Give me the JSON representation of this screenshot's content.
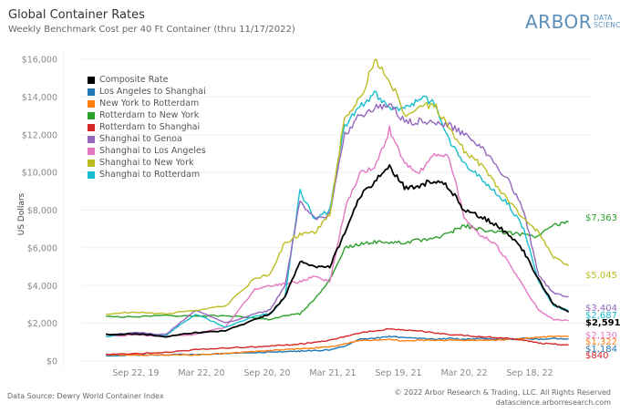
{
  "header": {
    "title": "Global Container Rates",
    "subtitle": "Weekly Benchmark Cost per 40 Ft Container (thru 11/17/2022)",
    "logo_main": "ARBOR",
    "logo_sub_1": "DATA",
    "logo_sub_2": "SCIENCE"
  },
  "footer": {
    "source": "Data Source: Dewry World Container Index",
    "copyright": "© 2022 Arbor Research & Trading, LLC. All Rights Reserved",
    "url": "datascience.arborresearch.com"
  },
  "chart_data": {
    "type": "line",
    "title": "Global Container Rates",
    "subtitle": "Weekly Benchmark Cost per 40 Ft Container (thru 11/17/2022)",
    "xlabel": "",
    "ylabel": "US Dollars",
    "ylim": [
      0,
      16000
    ],
    "yticks": [
      0,
      2000,
      4000,
      6000,
      8000,
      10000,
      12000,
      14000,
      16000
    ],
    "ytick_labels": [
      "$0",
      "$2,000",
      "$4,000",
      "$6,000",
      "$8,000",
      "$10,000",
      "$12,000",
      "$14,000",
      "$16,000"
    ],
    "xtick_labels": [
      "Sep 22, 19",
      "Mar 22, 20",
      "Sep 20, 20",
      "Mar 21, 21",
      "Sep 19, 21",
      "Mar 20, 22",
      "Sep 18, 22"
    ],
    "xtick_positions": [
      0.1,
      0.32,
      0.54,
      0.76,
      0.98,
      1.2,
      1.42
    ],
    "x_range": [
      -0.08,
      1.6
    ],
    "grid": true,
    "legend_position": "top-left",
    "x": [
      0.0,
      0.1,
      0.2,
      0.3,
      0.4,
      0.5,
      0.55,
      0.6,
      0.65,
      0.7,
      0.75,
      0.8,
      0.85,
      0.9,
      0.95,
      1.0,
      1.05,
      1.1,
      1.15,
      1.2,
      1.25,
      1.3,
      1.35,
      1.4,
      1.45,
      1.5,
      1.55
    ],
    "series": [
      {
        "name": "Composite Rate",
        "color": "#000000",
        "end_label": "$2,591",
        "values": [
          1400,
          1450,
          1300,
          1500,
          1600,
          2200,
          2500,
          3400,
          5300,
          5000,
          5000,
          6800,
          8700,
          9500,
          10300,
          9200,
          9300,
          9600,
          9200,
          8000,
          7700,
          7300,
          6700,
          5800,
          4300,
          3000,
          2591
        ]
      },
      {
        "name": "Los Angeles to Shanghai",
        "color": "#1f77b4",
        "end_label": "$1,184",
        "values": [
          300,
          320,
          330,
          350,
          400,
          450,
          480,
          500,
          520,
          550,
          600,
          800,
          1150,
          1200,
          1300,
          1250,
          1200,
          1150,
          1200,
          1150,
          1200,
          1150,
          1150,
          1200,
          1150,
          1200,
          1184
        ]
      },
      {
        "name": "New York to Rotterdam",
        "color": "#ff7f0e",
        "end_label": "$1,322",
        "values": [
          350,
          300,
          330,
          330,
          400,
          500,
          550,
          600,
          650,
          700,
          750,
          900,
          1100,
          1100,
          1150,
          1050,
          1100,
          1100,
          1100,
          1100,
          1100,
          1100,
          1150,
          1200,
          1250,
          1300,
          1322
        ]
      },
      {
        "name": "Rotterdam to New York",
        "color": "#2ca02c",
        "end_label": "$7,363",
        "values": [
          2350,
          2350,
          2400,
          2400,
          2400,
          2300,
          2200,
          2400,
          2500,
          3300,
          4300,
          6000,
          6200,
          6300,
          6300,
          6300,
          6400,
          6500,
          6800,
          7200,
          7000,
          6800,
          6800,
          6700,
          6600,
          7200,
          7363
        ]
      },
      {
        "name": "Rotterdam to Shanghai",
        "color": "#d62728",
        "end_label": "$840",
        "values": [
          350,
          400,
          450,
          600,
          700,
          750,
          800,
          850,
          900,
          1000,
          1100,
          1300,
          1500,
          1600,
          1700,
          1650,
          1600,
          1500,
          1400,
          1350,
          1300,
          1250,
          1200,
          1100,
          950,
          900,
          840
        ]
      },
      {
        "name": "Shanghai to Genoa",
        "color": "#9467bd",
        "end_label": "$3,404",
        "values": [
          1400,
          1500,
          1400,
          2700,
          2000,
          2500,
          2700,
          4000,
          8500,
          7500,
          7800,
          12000,
          13000,
          13400,
          13600,
          12700,
          12700,
          12600,
          12500,
          12000,
          11500,
          10500,
          9500,
          8000,
          4500,
          3600,
          3404
        ]
      },
      {
        "name": "Shanghai to Los Angeles",
        "color": "#e377c2",
        "end_label": "$2,130",
        "values": [
          1300,
          1400,
          1300,
          1400,
          1800,
          3800,
          4000,
          4100,
          4200,
          4500,
          4200,
          8000,
          10000,
          10200,
          12300,
          10500,
          10000,
          11000,
          10800,
          7600,
          6700,
          6300,
          5200,
          3900,
          2700,
          2200,
          2130
        ]
      },
      {
        "name": "Shanghai to New York",
        "color": "#bcbd22",
        "end_label": "$5,045",
        "values": [
          2500,
          2600,
          2500,
          2700,
          2900,
          4400,
          4600,
          6300,
          6700,
          6800,
          7800,
          13000,
          13800,
          16000,
          15000,
          13000,
          13500,
          13600,
          12400,
          11200,
          10500,
          9500,
          8500,
          7500,
          6800,
          5500,
          5045
        ]
      },
      {
        "name": "Shanghai to Rotterdam",
        "color": "#17becf",
        "end_label": "$2,687",
        "values": [
          1300,
          1500,
          1350,
          2500,
          1800,
          2400,
          2500,
          3400,
          9000,
          7500,
          8000,
          12500,
          13400,
          14200,
          13500,
          13300,
          13900,
          13800,
          11700,
          10500,
          9800,
          9000,
          8300,
          7000,
          4200,
          2900,
          2687
        ]
      }
    ]
  }
}
